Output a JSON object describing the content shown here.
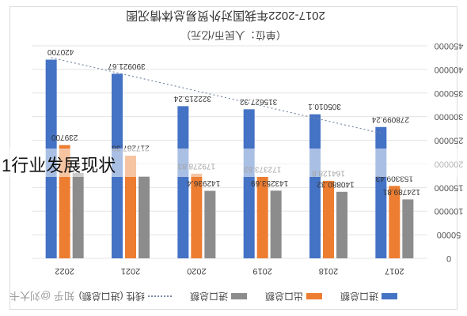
{
  "page": {
    "overlay_heading": "1行业发展现状",
    "watermark": "知乎 @刘大卡"
  },
  "colors": {
    "import": "#4472c4",
    "export": "#ed7d31",
    "total": "#8c8c8c",
    "trend": "#7a8aa6"
  },
  "chart_data": {
    "type": "bar",
    "title": "2017-2022年我国对外贸易总体情况图",
    "subtitle": "（单位：人民币/亿元）",
    "orientation": "rotated-180",
    "categories": [
      "2022",
      "2021",
      "2020",
      "2019",
      "2018",
      "2017"
    ],
    "series": [
      {
        "name": "进口总额",
        "color": "#4472c4",
        "values": [
          420700,
          390921.67,
          322215.24,
          315627.32,
          305010.1,
          278099.24
        ],
        "labels": [
          "420700",
          "390921.67",
          "322215.24",
          "315627.32",
          "305010.1",
          "278099.24"
        ]
      },
      {
        "name": "出口总额",
        "color": "#ed7d31",
        "values": [
          239700,
          217287.38,
          179278.83,
          172373.63,
          164128.8,
          153309.43
        ],
        "labels": [
          "239700",
          "217287.38",
          "179278.83",
          "172373.63",
          "164128.8",
          "153309.43"
        ]
      },
      {
        "name": "进口总额",
        "color": "#8c8c8c",
        "values": [
          181000,
          173634.29,
          142936.4,
          143253.69,
          140880.32,
          124789.81
        ],
        "labels": [
          "",
          "",
          "142936.4",
          "143253.69",
          "140880.32",
          "124789.81"
        ]
      }
    ],
    "trend": {
      "name": "线性 (进口总额)",
      "from": 425000,
      "to": 265000
    },
    "ylim": [
      0,
      450000
    ],
    "yticks": [
      0,
      50000,
      100000,
      150000,
      200000,
      250000,
      300000,
      350000,
      400000,
      450000
    ],
    "xlabel": "",
    "ylabel": "",
    "grid": true,
    "legend": {
      "position": "bottom",
      "entries": [
        "进口总额",
        "出口总额",
        "进口总额",
        "线性 (进口总额)"
      ]
    }
  }
}
